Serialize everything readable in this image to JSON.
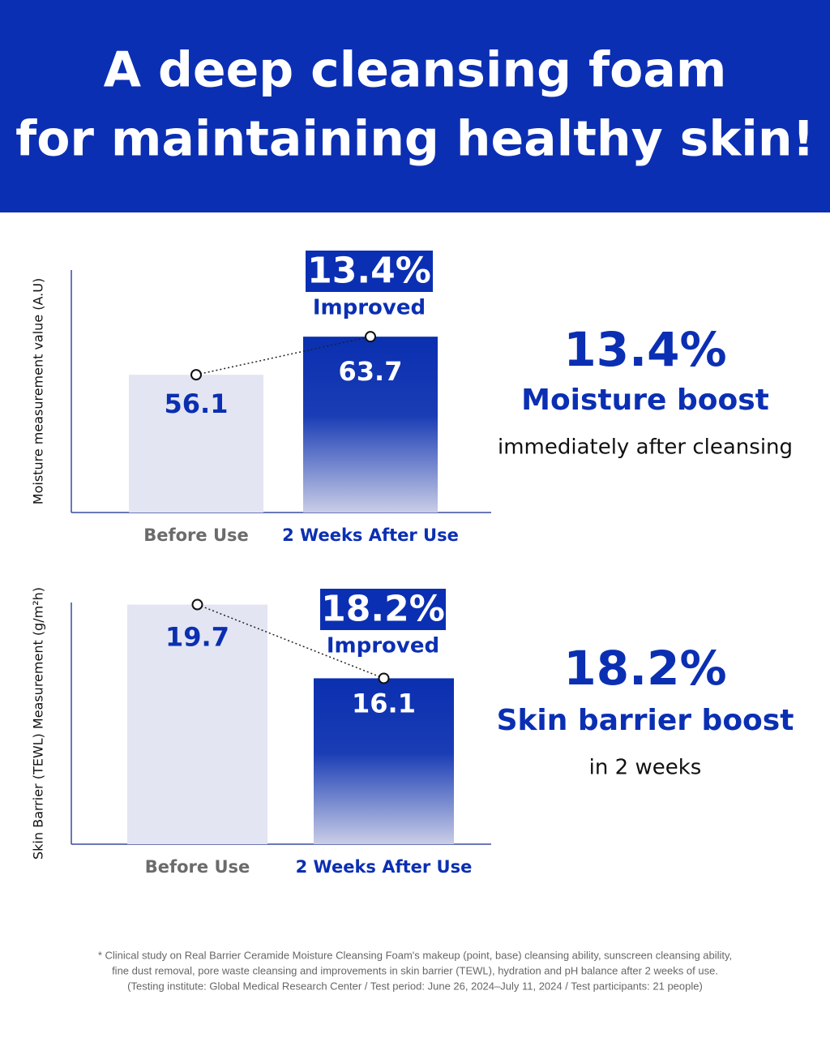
{
  "title": [
    "A deep cleansing foam",
    "for maintaining healthy skin!"
  ],
  "chart_data": [
    {
      "type": "bar",
      "y_label": "Moisture measurement value (A.U)",
      "categories": [
        "Before Use",
        "2 Weeks After Use"
      ],
      "values": [
        56.1,
        63.7
      ],
      "colors": [
        "#e3e5f3",
        "#0a2fb0"
      ],
      "ylim": [
        28.6,
        77
      ],
      "annotation": "13.4%",
      "annotation_label": "Improved"
    },
    {
      "type": "bar",
      "y_label": "Skin Barrier (TEWL) Measurement (g/m²h)",
      "categories": [
        "Before Use",
        "2 Weeks After Use"
      ],
      "values": [
        19.7,
        16.1
      ],
      "colors": [
        "#e3e5f3",
        "#0a2fb0"
      ],
      "ylim": [
        8,
        19.8
      ],
      "annotation": "18.2%",
      "annotation_label": "Improved"
    }
  ],
  "highlights": [
    {
      "value": "13.4%",
      "title": "Moisture boost",
      "subtitle": "immediately after cleansing"
    },
    {
      "value": "18.2%",
      "title": "Skin barrier boost",
      "subtitle": "in 2 weeks"
    }
  ],
  "footnote": [
    "* Clinical study on Real Barrier Ceramide Moisture Cleansing Foam's makeup (point, base) cleansing ability, sunscreen cleansing ability,",
    "fine dust removal, pore waste cleansing and improvements in skin barrier (TEWL), hydration and pH balance after 2 weeks of use.",
    "(Testing institute: Global Medical Research Center / Test period: June 26, 2024–July 11, 2024 / Test participants: 21 people)"
  ]
}
